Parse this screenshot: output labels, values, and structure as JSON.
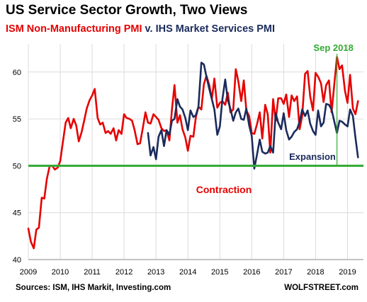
{
  "title": "US Service Sector Growth, Two Views",
  "subtitle": {
    "part1": "ISM Non-Manufacturing  PMI",
    "part2": " v. IHS Market Services PMI"
  },
  "source": "Sources: ISM, IHS Markit,  Investing.com",
  "credit": "WOLFSTREET.com",
  "colors": {
    "ism": "#e60000",
    "ihs": "#1b2b5c",
    "baseline": "#33aa33",
    "vline": "#33aa33",
    "grid": "#dcdcdc"
  },
  "chart_data": {
    "type": "line",
    "title": "US Service Sector Growth, Two Views",
    "xlim": [
      2009,
      2019.5
    ],
    "ylim": [
      40,
      63
    ],
    "xticks": [
      "2009",
      "2010",
      "2011",
      "2012",
      "2013",
      "2014",
      "2015",
      "2016",
      "2017",
      "2018",
      "2019"
    ],
    "yticks": [
      "40",
      "45",
      "50",
      "55",
      "60"
    ],
    "grid": true,
    "annotations": {
      "expansion": "Expansion",
      "contraction": "Contraction",
      "marker": "Sep 2018"
    },
    "reference_line": {
      "y": 50
    },
    "marker_line": {
      "x": 2018.67
    },
    "series": [
      {
        "name": "ISM Non-Manufacturing  PMI",
        "color": "#e60000",
        "x": [
          2009.0,
          2009.08,
          2009.17,
          2009.25,
          2009.33,
          2009.42,
          2009.5,
          2009.58,
          2009.67,
          2009.75,
          2009.83,
          2009.92,
          2010.0,
          2010.08,
          2010.17,
          2010.25,
          2010.33,
          2010.42,
          2010.5,
          2010.58,
          2010.67,
          2010.75,
          2010.83,
          2010.92,
          2011.0,
          2011.08,
          2011.17,
          2011.25,
          2011.33,
          2011.42,
          2011.5,
          2011.58,
          2011.67,
          2011.75,
          2011.83,
          2011.92,
          2012.0,
          2012.08,
          2012.17,
          2012.25,
          2012.33,
          2012.42,
          2012.5,
          2012.58,
          2012.67,
          2012.75,
          2012.83,
          2012.92,
          2013.0,
          2013.08,
          2013.17,
          2013.25,
          2013.33,
          2013.42,
          2013.5,
          2013.58,
          2013.67,
          2013.75,
          2013.83,
          2013.92,
          2014.0,
          2014.08,
          2014.17,
          2014.25,
          2014.33,
          2014.42,
          2014.5,
          2014.58,
          2014.67,
          2014.75,
          2014.83,
          2014.92,
          2015.0,
          2015.08,
          2015.17,
          2015.25,
          2015.33,
          2015.42,
          2015.5,
          2015.58,
          2015.67,
          2015.75,
          2015.83,
          2015.92,
          2016.0,
          2016.08,
          2016.17,
          2016.25,
          2016.33,
          2016.42,
          2016.5,
          2016.58,
          2016.67,
          2016.75,
          2016.83,
          2016.92,
          2017.0,
          2017.08,
          2017.17,
          2017.25,
          2017.33,
          2017.42,
          2017.5,
          2017.58,
          2017.67,
          2017.75,
          2017.83,
          2017.92,
          2018.0,
          2018.08,
          2018.17,
          2018.25,
          2018.33,
          2018.42,
          2018.5,
          2018.58,
          2018.67,
          2018.75,
          2018.83,
          2018.92,
          2019.0,
          2019.08,
          2019.17,
          2019.25,
          2019.33
        ],
        "values": [
          43.3,
          41.9,
          41.2,
          43.2,
          43.4,
          46.6,
          46.5,
          48.6,
          50.0,
          50.0,
          49.6,
          49.8,
          50.5,
          52.5,
          54.6,
          55.1,
          54.0,
          55.0,
          54.3,
          52.6,
          53.6,
          54.8,
          56.1,
          57.0,
          57.5,
          58.2,
          55.1,
          54.4,
          54.6,
          53.5,
          53.7,
          53.4,
          54.0,
          52.7,
          53.8,
          53.4,
          55.5,
          55.1,
          55.0,
          54.8,
          53.8,
          52.3,
          52.4,
          53.9,
          55.7,
          54.6,
          54.5,
          55.5,
          55.2,
          54.9,
          54.0,
          53.7,
          53.8,
          52.7,
          56.0,
          58.6,
          54.6,
          55.4,
          53.9,
          53.0,
          51.6,
          53.2,
          53.1,
          55.2,
          56.3,
          56.0,
          58.7,
          59.6,
          58.6,
          57.1,
          59.3,
          56.2,
          56.7,
          56.9,
          56.5,
          57.8,
          55.7,
          56.0,
          60.3,
          59.0,
          56.9,
          59.1,
          55.9,
          55.3,
          53.5,
          53.4,
          54.5,
          55.7,
          52.9,
          56.5,
          55.5,
          51.4,
          57.1,
          54.8,
          57.2,
          57.2,
          56.6,
          57.6,
          55.2,
          57.5,
          56.9,
          57.4,
          53.9,
          55.3,
          59.8,
          60.1,
          57.4,
          55.9,
          59.9,
          59.5,
          58.8,
          56.8,
          58.6,
          59.1,
          55.7,
          58.5,
          61.6,
          60.3,
          60.7,
          58.0,
          56.7,
          59.7,
          56.1,
          55.5,
          56.9
        ]
      },
      {
        "name": "IHS Market Services PMI",
        "color": "#1b2b5c",
        "x": [
          2012.75,
          2012.83,
          2012.92,
          2013.0,
          2013.08,
          2013.17,
          2013.25,
          2013.33,
          2013.42,
          2013.5,
          2013.58,
          2013.67,
          2013.75,
          2013.83,
          2013.92,
          2014.0,
          2014.08,
          2014.17,
          2014.25,
          2014.33,
          2014.42,
          2014.5,
          2014.58,
          2014.67,
          2014.75,
          2014.83,
          2014.92,
          2015.0,
          2015.08,
          2015.17,
          2015.25,
          2015.33,
          2015.42,
          2015.5,
          2015.58,
          2015.67,
          2015.75,
          2015.83,
          2015.92,
          2016.0,
          2016.08,
          2016.17,
          2016.25,
          2016.33,
          2016.42,
          2016.5,
          2016.58,
          2016.67,
          2016.75,
          2016.83,
          2016.92,
          2017.0,
          2017.08,
          2017.17,
          2017.25,
          2017.33,
          2017.42,
          2017.5,
          2017.58,
          2017.67,
          2017.75,
          2017.83,
          2017.92,
          2018.0,
          2018.08,
          2018.17,
          2018.25,
          2018.33,
          2018.42,
          2018.5,
          2018.58,
          2018.67,
          2018.75,
          2018.83,
          2018.92,
          2019.0,
          2019.08,
          2019.17,
          2019.25,
          2019.33
        ],
        "values": [
          53.5,
          51.1,
          52.0,
          50.7,
          53.1,
          53.8,
          52.1,
          53.8,
          53.3,
          54.8,
          55.0,
          57.1,
          56.3,
          56.0,
          55.1,
          53.8,
          55.9,
          55.2,
          55.4,
          56.3,
          61.0,
          60.8,
          59.5,
          58.2,
          57.1,
          56.0,
          53.3,
          54.2,
          57.1,
          59.2,
          57.0,
          56.1,
          54.8,
          55.7,
          56.1,
          55.0,
          54.9,
          56.1,
          54.3,
          53.2,
          49.7,
          51.3,
          52.8,
          51.5,
          51.3,
          51.4,
          52.1,
          51.4,
          55.6,
          54.6,
          53.9,
          55.6,
          53.8,
          52.8,
          53.1,
          53.6,
          53.9,
          54.7,
          56.0,
          55.3,
          55.9,
          54.5,
          53.7,
          53.3,
          55.9,
          54.2,
          54.6,
          56.6,
          56.5,
          56.0,
          54.8,
          53.5,
          54.8,
          54.7,
          54.4,
          54.2,
          56.0,
          55.3,
          53.0,
          50.9
        ]
      }
    ]
  }
}
